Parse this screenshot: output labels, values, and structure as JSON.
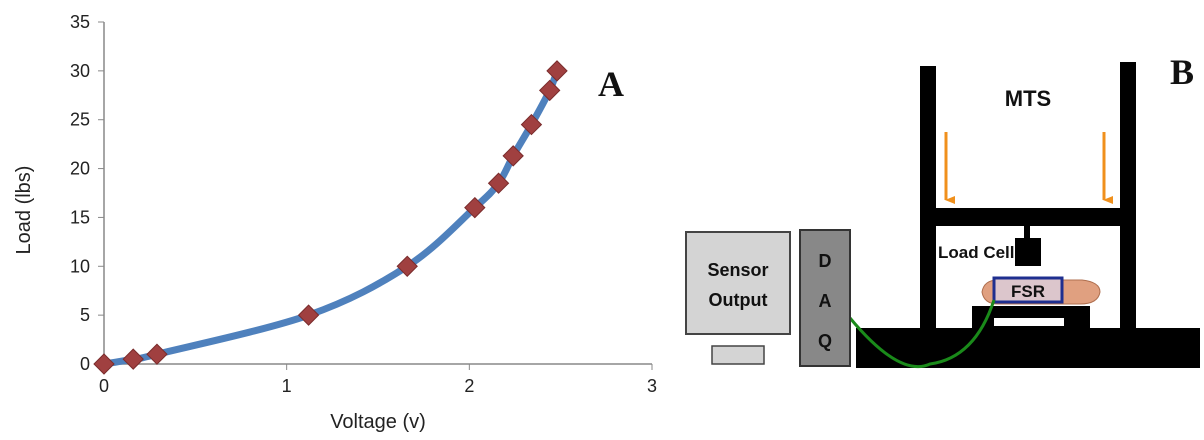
{
  "chart_data": {
    "type": "line",
    "panel_label": "A",
    "xlabel": "Voltage (v)",
    "ylabel": "Load (lbs)",
    "xlim": [
      0,
      3
    ],
    "ylim": [
      0,
      35
    ],
    "x_ticks": [
      "0",
      "1",
      "2",
      "3"
    ],
    "y_ticks": [
      "0",
      "5",
      "10",
      "15",
      "20",
      "25",
      "30",
      "35"
    ],
    "grid": false,
    "legend": "none",
    "line_color": "#4f81bd",
    "marker_color": "#a04040",
    "marker": "diamond",
    "series": [
      {
        "x": [
          0,
          0.16,
          0.29,
          1.12,
          1.66,
          2.03,
          2.16,
          2.24,
          2.34,
          2.44,
          2.48
        ],
        "y": [
          0,
          0.5,
          1,
          5,
          10,
          16,
          18.5,
          21.3,
          24.5,
          28,
          30
        ]
      }
    ]
  },
  "diagram": {
    "panel_label": "B",
    "mts_label": "MTS",
    "load_cell_label": "Load Cell",
    "fsr_label": "FSR",
    "sensor_output_label": [
      "Sensor",
      "Output"
    ],
    "daq_letters": [
      "D",
      "A",
      "Q"
    ],
    "colors": {
      "frame": "#000000",
      "arrow": "#f0901c",
      "wire": "#1a8a1a",
      "fsr_border": "#1f2f8f",
      "hand": "#e0a080",
      "monitor": "#d4d4d4",
      "daq": "#888888"
    }
  }
}
